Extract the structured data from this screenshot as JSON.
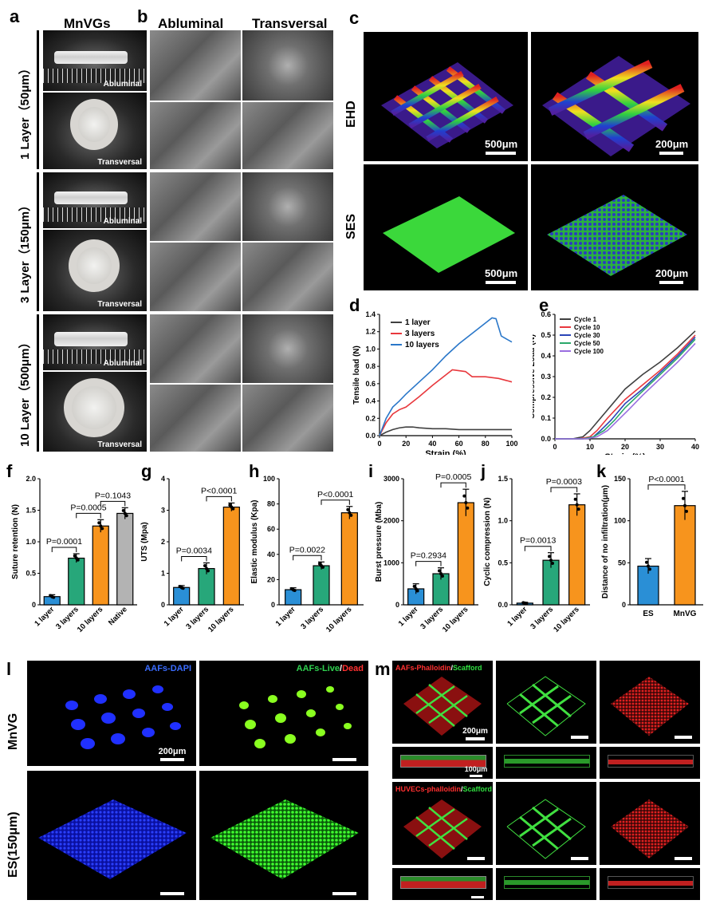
{
  "panels": {
    "a": "a",
    "b": "b",
    "c": "c",
    "d": "d",
    "e": "e",
    "f": "f",
    "g": "g",
    "h": "h",
    "i": "i",
    "j": "j",
    "k": "k",
    "l": "l",
    "m": "m"
  },
  "panel_a": {
    "title": "MnVGs",
    "rows": [
      "1 Layer（50μm）",
      "3 Layer（150μm）",
      "10 Layer（500μm）"
    ],
    "abluminal": "Abluminal",
    "transversal": "Transversal"
  },
  "panel_b": {
    "col1": "Abluminal",
    "col2": "Transversal"
  },
  "panel_c": {
    "row1": "EHD",
    "row2": "SES",
    "scales": [
      "500μm",
      "200μm",
      "500μm",
      "200μm"
    ]
  },
  "panel_l": {
    "row1": "MnVG",
    "row2": "ES(150μm)",
    "title_dapi": "AAFs-DAPI",
    "title_live": "AAFs-Live",
    "title_slash": "/",
    "title_dead": "Dead",
    "scale": "200μm"
  },
  "panel_m": {
    "title1_a": "AAFs-Phalloidin",
    "title1_slash": "/",
    "title1_b": "Scafford",
    "title2_a": "HUVECs-phalloidin",
    "title2_slash": "/",
    "title2_b": "Scafford",
    "scale1": "200μm",
    "scale2": "100μm"
  },
  "colors": {
    "blue": "#2a8fd6",
    "green": "#27a77a",
    "orange": "#f7941d",
    "gray": "#b3b3b3",
    "line_1layer": "#404040",
    "line_3layers": "#e8383d",
    "line_10layers": "#2a77c9"
  },
  "chart_data": [
    {
      "id": "d",
      "type": "line",
      "xlabel": "Strain (%)",
      "ylabel": "Tensile load (N)",
      "xlim": [
        0,
        100
      ],
      "ylim": [
        0,
        1.4
      ],
      "xticks": [
        0,
        20,
        40,
        60,
        80,
        100
      ],
      "yticks": [
        0.0,
        0.2,
        0.4,
        0.6,
        0.8,
        1.0,
        1.2,
        1.4
      ],
      "series": [
        {
          "name": "1 layer",
          "x": [
            0,
            5,
            10,
            15,
            20,
            25,
            30,
            40,
            50,
            60,
            70,
            80,
            90,
            100
          ],
          "y": [
            0,
            0.04,
            0.07,
            0.09,
            0.1,
            0.1,
            0.09,
            0.08,
            0.08,
            0.07,
            0.07,
            0.07,
            0.07,
            0.07
          ]
        },
        {
          "name": "3 layers",
          "x": [
            0,
            5,
            10,
            15,
            20,
            30,
            40,
            50,
            55,
            60,
            65,
            70,
            80,
            90,
            100
          ],
          "y": [
            0,
            0.15,
            0.25,
            0.3,
            0.33,
            0.45,
            0.58,
            0.7,
            0.76,
            0.75,
            0.74,
            0.68,
            0.68,
            0.66,
            0.62
          ]
        },
        {
          "name": "10 layers",
          "x": [
            0,
            5,
            10,
            15,
            20,
            30,
            40,
            50,
            60,
            70,
            80,
            85,
            88,
            92,
            100
          ],
          "y": [
            0,
            0.2,
            0.33,
            0.4,
            0.48,
            0.62,
            0.76,
            0.92,
            1.06,
            1.18,
            1.3,
            1.36,
            1.35,
            1.15,
            1.08
          ]
        }
      ]
    },
    {
      "id": "e",
      "type": "line",
      "xlabel": "Strain (%)",
      "ylabel": "Compressive Load (N)",
      "xlim": [
        0,
        40
      ],
      "ylim": [
        0,
        0.6
      ],
      "xticks": [
        0,
        10,
        20,
        30,
        40
      ],
      "yticks": [
        0.0,
        0.1,
        0.2,
        0.3,
        0.4,
        0.5,
        0.6
      ],
      "series": [
        {
          "name": "Cycle 1",
          "x": [
            0,
            5,
            8,
            10,
            15,
            20,
            25,
            30,
            35,
            40
          ],
          "y": [
            0,
            0,
            0.01,
            0.04,
            0.14,
            0.24,
            0.31,
            0.37,
            0.44,
            0.52
          ]
        },
        {
          "name": "Cycle 10",
          "x": [
            0,
            7,
            10,
            12,
            15,
            20,
            25,
            30,
            35,
            40
          ],
          "y": [
            0,
            0,
            0.01,
            0.04,
            0.1,
            0.19,
            0.26,
            0.33,
            0.41,
            0.5
          ]
        },
        {
          "name": "Cycle 30",
          "x": [
            0,
            8,
            11,
            13,
            16,
            20,
            25,
            30,
            35,
            40
          ],
          "y": [
            0,
            0,
            0.01,
            0.04,
            0.09,
            0.17,
            0.24,
            0.32,
            0.4,
            0.49
          ]
        },
        {
          "name": "Cycle 50",
          "x": [
            0,
            8,
            11,
            14,
            17,
            20,
            25,
            30,
            35,
            40
          ],
          "y": [
            0,
            0,
            0.01,
            0.04,
            0.09,
            0.15,
            0.23,
            0.31,
            0.39,
            0.48
          ]
        },
        {
          "name": "Cycle 100",
          "x": [
            0,
            9,
            12,
            15,
            18,
            21,
            25,
            30,
            35,
            40
          ],
          "y": [
            0,
            0,
            0.01,
            0.04,
            0.09,
            0.14,
            0.21,
            0.29,
            0.37,
            0.46
          ]
        }
      ]
    },
    {
      "id": "f",
      "type": "bar",
      "ylabel": "Suture retention (N)",
      "ylim": [
        0,
        2
      ],
      "yticks": [
        0,
        0.5,
        1.0,
        1.5,
        2.0
      ],
      "categories": [
        "1 layer",
        "3 layers",
        "10 layers",
        "Native"
      ],
      "values": [
        0.13,
        0.74,
        1.25,
        1.45
      ],
      "errors": [
        0.03,
        0.07,
        0.1,
        0.09
      ],
      "colors": [
        "#2a8fd6",
        "#27a77a",
        "#f7941d",
        "#b3b3b3"
      ],
      "brackets": [
        {
          "from": 0,
          "to": 1,
          "label": "P=0.0001"
        },
        {
          "from": 1,
          "to": 2,
          "label": "P=0.0005"
        },
        {
          "from": 2,
          "to": 3,
          "label": "P=0.1043"
        }
      ]
    },
    {
      "id": "g",
      "type": "bar",
      "ylabel": "UTS (Mpa)",
      "ylim": [
        0,
        4
      ],
      "yticks": [
        0,
        1,
        2,
        3,
        4
      ],
      "categories": [
        "1 layer",
        "3 layers",
        "10 layers"
      ],
      "values": [
        0.55,
        1.15,
        3.1
      ],
      "errors": [
        0.06,
        0.18,
        0.13
      ],
      "colors": [
        "#2a8fd6",
        "#27a77a",
        "#f7941d"
      ],
      "brackets": [
        {
          "from": 0,
          "to": 1,
          "label": "P=0.0034"
        },
        {
          "from": 1,
          "to": 2,
          "label": "P<0.0001"
        }
      ]
    },
    {
      "id": "h",
      "type": "bar",
      "ylabel": "Elastic modulus (Kpa)",
      "ylim": [
        0,
        100
      ],
      "yticks": [
        0,
        20,
        40,
        60,
        80,
        100
      ],
      "categories": [
        "1 layer",
        "3 layers",
        "10 layers"
      ],
      "values": [
        12,
        31,
        73
      ],
      "errors": [
        1.5,
        3,
        5
      ],
      "colors": [
        "#2a8fd6",
        "#27a77a",
        "#f7941d"
      ],
      "brackets": [
        {
          "from": 0,
          "to": 1,
          "label": "P=0.0022"
        },
        {
          "from": 1,
          "to": 2,
          "label": "P<0.0001"
        }
      ]
    },
    {
      "id": "i",
      "type": "bar",
      "ylabel": "Burst pressure (Mba)",
      "ylim": [
        0,
        3000
      ],
      "yticks": [
        0,
        1000,
        2000,
        3000
      ],
      "categories": [
        "1 layer",
        "3 layers",
        "10 layers"
      ],
      "values": [
        380,
        740,
        2430
      ],
      "errors": [
        120,
        140,
        320
      ],
      "colors": [
        "#2a8fd6",
        "#27a77a",
        "#f7941d"
      ],
      "brackets": [
        {
          "from": 0,
          "to": 1,
          "label": "P=0.2934"
        },
        {
          "from": 1,
          "to": 2,
          "label": "P=0.0005"
        }
      ]
    },
    {
      "id": "j",
      "type": "bar",
      "ylabel": "Cyclic compression (N)",
      "ylim": [
        0,
        1.5
      ],
      "yticks": [
        0.0,
        0.5,
        1.0,
        1.5
      ],
      "categories": [
        "1 layer",
        "3 layers",
        "10 layers"
      ],
      "values": [
        0.02,
        0.53,
        1.19
      ],
      "errors": [
        0.01,
        0.09,
        0.13
      ],
      "colors": [
        "#2a8fd6",
        "#27a77a",
        "#f7941d"
      ],
      "brackets": [
        {
          "from": 0,
          "to": 1,
          "label": "P=0.0013"
        },
        {
          "from": 1,
          "to": 2,
          "label": "P=0.0003"
        }
      ]
    },
    {
      "id": "k",
      "type": "bar",
      "ylabel": "Distance of no infiltration(μm)",
      "ylim": [
        0,
        150
      ],
      "yticks": [
        0,
        50,
        100,
        150
      ],
      "categories": [
        "ES",
        "MnVG"
      ],
      "values": [
        46,
        118
      ],
      "errors": [
        9,
        17
      ],
      "colors": [
        "#2a8fd6",
        "#f7941d"
      ],
      "brackets": [
        {
          "from": 0,
          "to": 1,
          "label": "P<0.0001"
        }
      ]
    }
  ]
}
